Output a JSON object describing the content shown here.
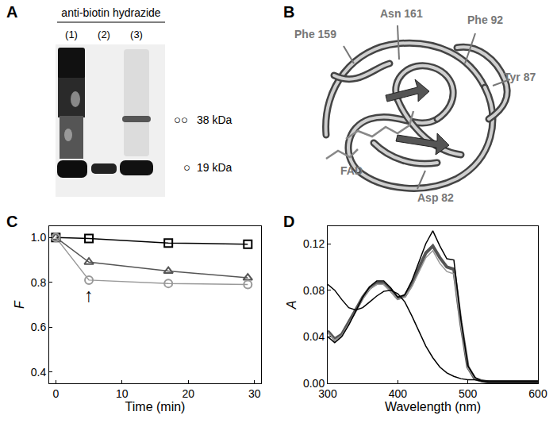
{
  "panel_labels": [
    "A",
    "B",
    "C",
    "D"
  ],
  "blot": {
    "title": "anti-biotin hydrazide",
    "lanes": [
      "(1)",
      "(2)",
      "(3)"
    ],
    "markers": [
      {
        "symbol": "○○",
        "label": "38 kDa"
      },
      {
        "symbol": "○",
        "label": "19 kDa"
      }
    ]
  },
  "structure": {
    "labels": [
      "Phe 159",
      "Asn 161",
      "Phe 92",
      "Tyr 87",
      "FAD",
      "Asp 82"
    ]
  },
  "chart_data": [
    {
      "type": "line",
      "x_label": "Time (min)",
      "y_label": "F",
      "x": [
        0,
        5,
        17,
        29
      ],
      "series": [
        {
          "color": "#000000",
          "marker": "square",
          "values": [
            1.0,
            0.995,
            0.975,
            0.97
          ]
        },
        {
          "color": "#555555",
          "marker": "triangle-up",
          "values": [
            1.0,
            0.89,
            0.85,
            0.82
          ]
        },
        {
          "color": "#999999",
          "marker": "circle",
          "values": [
            1.0,
            0.81,
            0.795,
            0.79
          ]
        }
      ],
      "xlim": [
        -1,
        31
      ],
      "xticks": [
        0,
        10,
        20,
        30
      ],
      "ylim": [
        0.35,
        1.05
      ],
      "yticks": [
        {
          "value": 0.4,
          "label": "0.4"
        },
        {
          "value": 0.6,
          "label": "0.6"
        },
        {
          "value": 0.8,
          "label": "0.8"
        },
        {
          "value": 1,
          "label": "1.0"
        }
      ],
      "annotations": [
        {
          "text": "↑",
          "x": 5,
          "y": 0.745
        }
      ],
      "grid": false,
      "legend": false
    },
    {
      "type": "line",
      "x_label": "Wavelength (nm)",
      "y_label": "A",
      "x": [
        300,
        310,
        320,
        330,
        340,
        350,
        360,
        370,
        380,
        390,
        400,
        410,
        420,
        430,
        440,
        450,
        460,
        470,
        480,
        490,
        500,
        510,
        520,
        530,
        540,
        550,
        560,
        570,
        580,
        590,
        600
      ],
      "series": [
        {
          "color": "#555555",
          "line_style": "thick",
          "values": [
            0.045,
            0.038,
            0.042,
            0.052,
            0.063,
            0.074,
            0.082,
            0.086,
            0.086,
            0.08,
            0.073,
            0.075,
            0.085,
            0.099,
            0.112,
            0.118,
            0.108,
            0.1,
            0.098,
            0.052,
            0.014,
            0.004,
            0.002,
            0.001,
            0.001,
            0.001,
            0.001,
            0.001,
            0.001,
            0.001,
            0.001
          ]
        },
        {
          "color": "#999999",
          "line_style": "solid",
          "values": [
            0.044,
            0.037,
            0.041,
            0.051,
            0.062,
            0.073,
            0.081,
            0.085,
            0.085,
            0.079,
            0.072,
            0.074,
            0.083,
            0.096,
            0.108,
            0.114,
            0.103,
            0.096,
            0.094,
            0.05,
            0.013,
            0.004,
            0.002,
            0.001,
            0.001,
            0.001,
            0.001,
            0.001,
            0.001,
            0.001,
            0.001
          ]
        },
        {
          "color": "#000000",
          "line_style": "solid",
          "values": [
            0.04,
            0.035,
            0.04,
            0.05,
            0.062,
            0.074,
            0.083,
            0.088,
            0.088,
            0.082,
            0.074,
            0.076,
            0.088,
            0.104,
            0.12,
            0.131,
            0.118,
            0.107,
            0.106,
            0.055,
            0.015,
            0.005,
            0.002,
            0.001,
            0.001,
            0.001,
            0.001,
            0.001,
            0.001,
            0.001,
            0.001
          ]
        },
        {
          "color": "#000000",
          "line_style": "solid",
          "values": [
            0.085,
            0.08,
            0.072,
            0.065,
            0.063,
            0.065,
            0.07,
            0.075,
            0.079,
            0.08,
            0.077,
            0.07,
            0.058,
            0.045,
            0.032,
            0.022,
            0.014,
            0.009,
            0.006,
            0.004,
            0.003,
            0.003,
            0.002,
            0.002,
            0.002,
            0.002,
            0.002,
            0.002,
            0.002,
            0.002,
            0.002
          ]
        }
      ],
      "xlim": [
        300,
        600
      ],
      "xticks": [
        300,
        400,
        500,
        600
      ],
      "ylim": [
        0,
        0.135
      ],
      "yticks": [
        {
          "value": 0,
          "label": "0.00"
        },
        {
          "value": 0.04,
          "label": "0.04"
        },
        {
          "value": 0.08,
          "label": "0.08"
        },
        {
          "value": 0.12,
          "label": "0.12"
        }
      ],
      "grid": false,
      "legend": false
    }
  ]
}
